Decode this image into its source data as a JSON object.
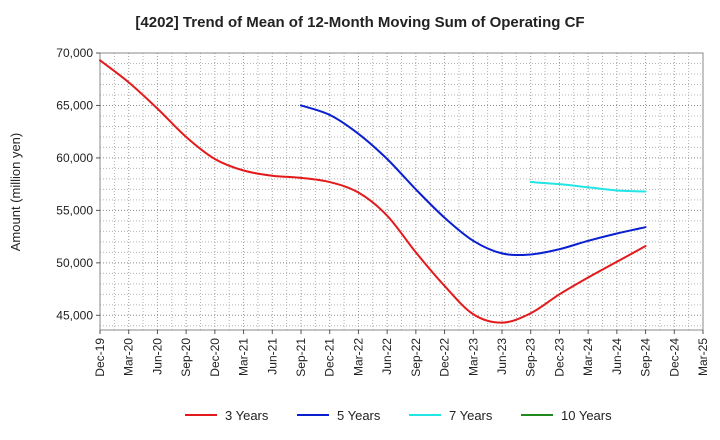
{
  "chart_data": {
    "type": "line",
    "title": "[4202]  Trend of Mean of 12-Month Moving Sum of Operating CF",
    "ylabel": "Amount (million yen)",
    "xlabel": "",
    "ylim": [
      43600,
      70000
    ],
    "y_ticks": [
      45000,
      50000,
      55000,
      60000,
      65000,
      70000
    ],
    "y_tick_labels": [
      "45,000",
      "50,000",
      "55,000",
      "60,000",
      "65,000",
      "70,000"
    ],
    "x_tick_labels": [
      "Dec-19",
      "Mar-20",
      "Jun-20",
      "Sep-20",
      "Dec-20",
      "Mar-21",
      "Jun-21",
      "Sep-21",
      "Dec-21",
      "Mar-22",
      "Jun-22",
      "Sep-22",
      "Dec-22",
      "Mar-23",
      "Jun-23",
      "Sep-23",
      "Dec-23",
      "Mar-24",
      "Jun-24",
      "Sep-24",
      "Dec-24",
      "Mar-25"
    ],
    "grid": true,
    "legend_position": "bottom",
    "series": [
      {
        "name": "3 Years",
        "color": "#e31a1c",
        "start_index": 0,
        "values": [
          69300,
          67200,
          64700,
          62000,
          59900,
          58800,
          58300,
          58100,
          57700,
          56700,
          54500,
          51000,
          47800,
          45100,
          44300,
          45200,
          47000,
          48600,
          50100,
          51600
        ]
      },
      {
        "name": "5 Years",
        "color": "#0a1fd0",
        "start_index": 7,
        "values": [
          65000,
          64100,
          62300,
          59900,
          57000,
          54300,
          52100,
          50900,
          50800,
          51300,
          52100,
          52800,
          53400
        ]
      },
      {
        "name": "7 Years",
        "color": "#22e5e5",
        "start_index": 15,
        "values": [
          57700,
          57500,
          57200,
          56900,
          56800
        ]
      },
      {
        "name": "10 Years",
        "color": "#1f8b1f",
        "start_index": 0,
        "values": []
      }
    ]
  }
}
